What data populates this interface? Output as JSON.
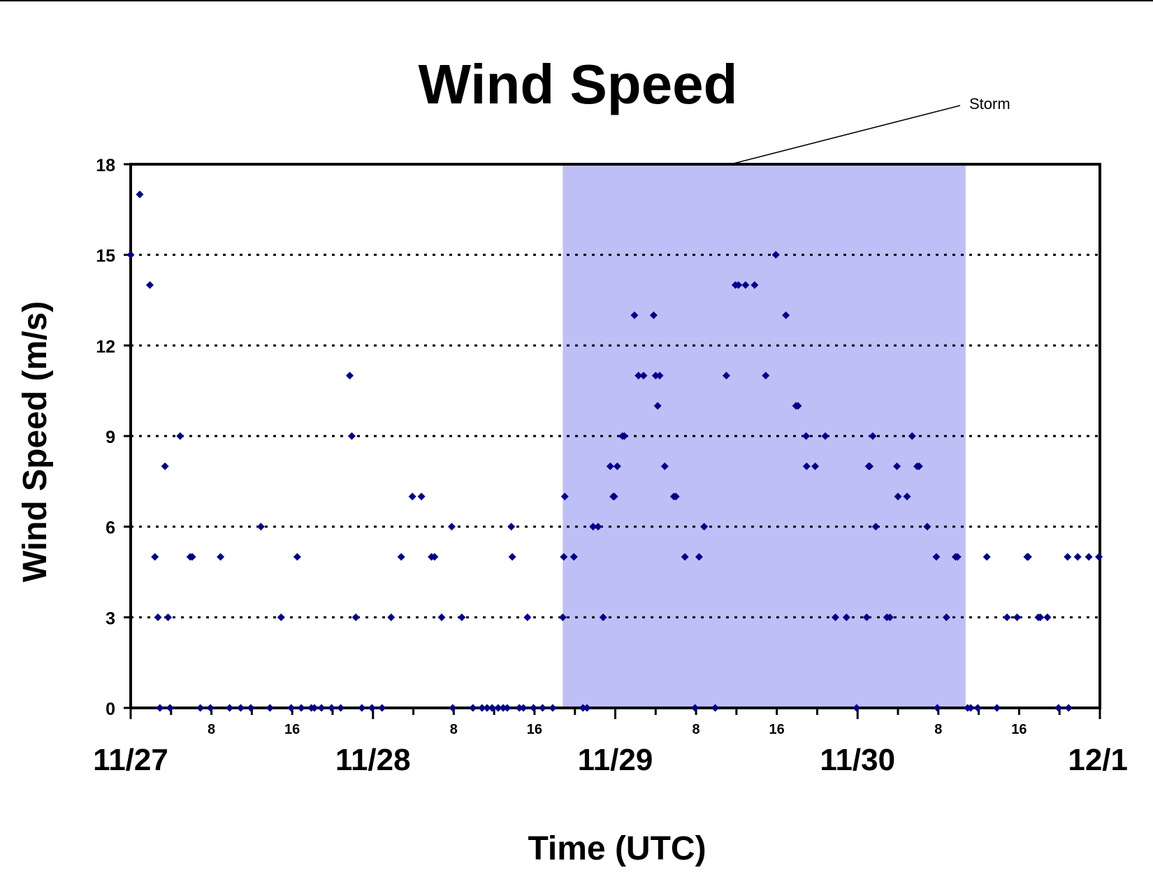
{
  "chart_data": {
    "type": "scatter",
    "title": "Wind Speed",
    "xlabel": "Time (UTC)",
    "ylabel": "Wind Speed (m/s)",
    "xlim": [
      0,
      96
    ],
    "ylim": [
      0,
      18
    ],
    "y_ticks": [
      0,
      3,
      6,
      9,
      12,
      15,
      18
    ],
    "y_tick_labels": [
      "0",
      "3",
      "6",
      "9",
      "12",
      "15",
      "18"
    ],
    "grid": "horizontal dotted",
    "x_major": [
      {
        "hour": 0,
        "label": "11/27"
      },
      {
        "hour": 24,
        "label": "11/28"
      },
      {
        "hour": 48,
        "label": "11/29"
      },
      {
        "hour": 72,
        "label": "11/30"
      },
      {
        "hour": 96,
        "label": "12/1"
      }
    ],
    "x_minor": [
      {
        "hour": 8,
        "label": "8"
      },
      {
        "hour": 16,
        "label": "16"
      },
      {
        "hour": 32,
        "label": "8"
      },
      {
        "hour": 40,
        "label": "16"
      },
      {
        "hour": 56,
        "label": "8"
      },
      {
        "hour": 64,
        "label": "16"
      },
      {
        "hour": 80,
        "label": "8"
      },
      {
        "hour": 88,
        "label": "16"
      }
    ],
    "shaded_region": {
      "x_start": 42.8,
      "x_end": 82.7,
      "color": "#bfbff8"
    },
    "annotation": {
      "text": "Storm",
      "x": 59.7
    },
    "marker_color": "#00008b",
    "series": [
      {
        "points": [
          [
            0,
            15
          ],
          [
            0.9,
            17
          ],
          [
            1.9,
            14
          ],
          [
            2.4,
            5
          ],
          [
            2.7,
            3
          ],
          [
            2.9,
            0
          ],
          [
            3.4,
            8
          ],
          [
            3.7,
            3
          ],
          [
            3.9,
            0
          ],
          [
            4.9,
            9
          ],
          [
            5.9,
            5
          ],
          [
            6.1,
            5
          ],
          [
            6.9,
            0
          ],
          [
            7.9,
            0
          ],
          [
            8.9,
            5
          ],
          [
            9.8,
            0
          ],
          [
            10.9,
            0
          ],
          [
            11.9,
            0
          ],
          [
            12.9,
            6
          ],
          [
            13.8,
            0
          ],
          [
            14.9,
            3
          ],
          [
            15.9,
            0
          ],
          [
            16.5,
            5
          ],
          [
            16.9,
            0
          ],
          [
            17.9,
            0
          ],
          [
            18.2,
            0
          ],
          [
            18.9,
            0
          ],
          [
            19.9,
            0
          ],
          [
            20.8,
            0
          ],
          [
            21.7,
            11
          ],
          [
            21.9,
            9
          ],
          [
            22.3,
            3
          ],
          [
            22.9,
            0
          ],
          [
            23.9,
            0
          ],
          [
            24.9,
            0
          ],
          [
            25.8,
            3
          ],
          [
            26.8,
            5
          ],
          [
            27.9,
            7
          ],
          [
            28.8,
            7
          ],
          [
            29.8,
            5
          ],
          [
            30.1,
            5
          ],
          [
            30.8,
            3
          ],
          [
            31.8,
            6
          ],
          [
            31.9,
            0
          ],
          [
            32.8,
            3
          ],
          [
            33.9,
            0
          ],
          [
            34.8,
            0
          ],
          [
            35.3,
            0
          ],
          [
            35.8,
            0
          ],
          [
            36.4,
            0
          ],
          [
            36.9,
            0
          ],
          [
            37.3,
            0
          ],
          [
            37.7,
            6
          ],
          [
            37.8,
            5
          ],
          [
            38.5,
            0
          ],
          [
            38.9,
            0
          ],
          [
            39.3,
            3
          ],
          [
            39.9,
            0
          ],
          [
            40.8,
            0
          ],
          [
            41.8,
            0
          ],
          [
            42.8,
            3
          ],
          [
            42.9,
            5
          ],
          [
            43.0,
            7
          ],
          [
            43.9,
            5
          ],
          [
            44.8,
            0
          ],
          [
            45.2,
            0
          ],
          [
            45.8,
            6
          ],
          [
            46.3,
            6
          ],
          [
            46.8,
            3
          ],
          [
            47.5,
            8
          ],
          [
            47.8,
            7
          ],
          [
            47.9,
            7
          ],
          [
            48.2,
            8
          ],
          [
            48.7,
            9
          ],
          [
            48.9,
            9
          ],
          [
            49.9,
            13
          ],
          [
            50.3,
            11
          ],
          [
            50.8,
            11
          ],
          [
            51.8,
            13
          ],
          [
            52.0,
            11
          ],
          [
            52.2,
            10
          ],
          [
            52.4,
            11
          ],
          [
            52.9,
            8
          ],
          [
            53.8,
            7
          ],
          [
            54.0,
            7
          ],
          [
            54.9,
            5
          ],
          [
            55.9,
            0
          ],
          [
            56.3,
            5
          ],
          [
            56.8,
            6
          ],
          [
            57.9,
            0
          ],
          [
            59.0,
            11
          ],
          [
            59.9,
            14
          ],
          [
            60.2,
            14
          ],
          [
            60.9,
            14
          ],
          [
            61.8,
            14
          ],
          [
            62.9,
            11
          ],
          [
            63.9,
            15
          ],
          [
            64.9,
            13
          ],
          [
            65.9,
            10
          ],
          [
            66.1,
            10
          ],
          [
            66.9,
            9
          ],
          [
            66.95,
            8
          ],
          [
            67.8,
            8
          ],
          [
            68.8,
            9
          ],
          [
            69.8,
            3
          ],
          [
            70.9,
            3
          ],
          [
            71.9,
            0
          ],
          [
            72.9,
            3
          ],
          [
            73.1,
            8
          ],
          [
            73.2,
            8
          ],
          [
            73.5,
            9
          ],
          [
            73.8,
            6
          ],
          [
            74.9,
            3
          ],
          [
            75.2,
            3
          ],
          [
            75.9,
            8
          ],
          [
            76.0,
            7
          ],
          [
            76.9,
            7
          ],
          [
            77.4,
            9
          ],
          [
            77.9,
            8
          ],
          [
            78.1,
            8
          ],
          [
            78.9,
            6
          ],
          [
            79.8,
            5
          ],
          [
            79.9,
            0
          ],
          [
            80.8,
            3
          ],
          [
            81.7,
            5
          ],
          [
            81.9,
            5
          ],
          [
            82.9,
            0
          ],
          [
            83.2,
            0
          ],
          [
            83.9,
            0
          ],
          [
            84.8,
            5
          ],
          [
            85.8,
            0
          ],
          [
            86.8,
            3
          ],
          [
            87.8,
            3
          ],
          [
            88.8,
            5
          ],
          [
            88.9,
            5
          ],
          [
            89.9,
            3
          ],
          [
            90.1,
            3
          ],
          [
            90.8,
            3
          ],
          [
            91.9,
            0
          ],
          [
            92.8,
            5
          ],
          [
            92.9,
            0
          ],
          [
            93.8,
            5
          ],
          [
            94.9,
            5
          ],
          [
            95.9,
            5
          ]
        ]
      }
    ]
  }
}
